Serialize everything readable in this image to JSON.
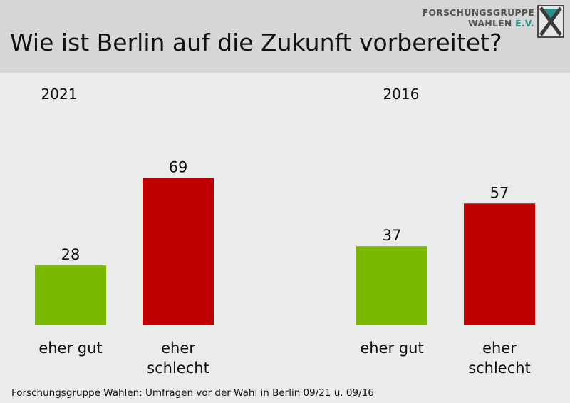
{
  "header": {
    "title": "Wie ist Berlin auf die Zukunft vorbereitet?",
    "logo_line1": "FORSCHUNGSGRUPPE",
    "logo_line2": "WAHLEN",
    "logo_ev": "E.V."
  },
  "source": "Forschungsgruppe Wahlen: Umfragen vor der Wahl in Berlin 09/21 u. 09/16",
  "colors": {
    "good": "#7ab800",
    "bad": "#c00000",
    "logo_teal": "#2a8f8a"
  },
  "chart_data": [
    {
      "type": "bar",
      "title": "2021",
      "categories": [
        "eher gut",
        "eher schlecht"
      ],
      "values": [
        28,
        69
      ],
      "ylim": [
        0,
        100
      ]
    },
    {
      "type": "bar",
      "title": "2016",
      "categories": [
        "eher gut",
        "eher schlecht"
      ],
      "values": [
        37,
        57
      ],
      "ylim": [
        0,
        100
      ]
    }
  ]
}
